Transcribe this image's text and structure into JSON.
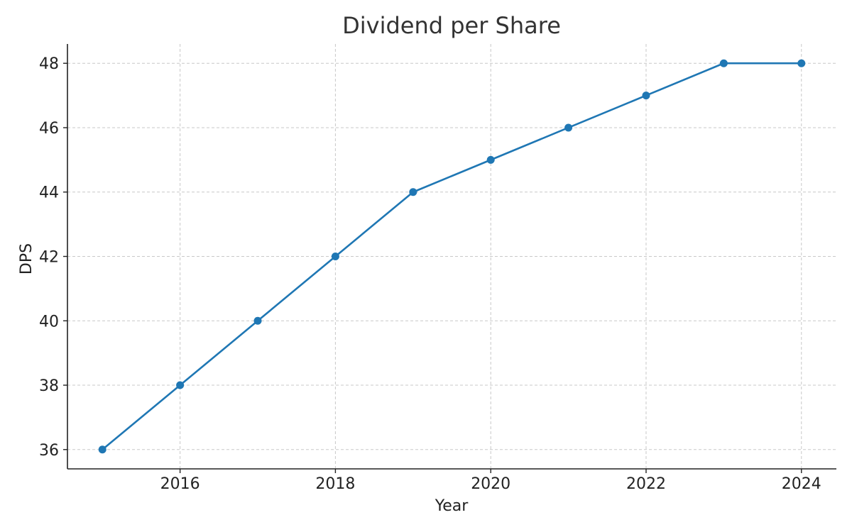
{
  "chart_data": {
    "type": "line",
    "title": "Dividend per Share",
    "xlabel": "Year",
    "ylabel": "DPS",
    "x": [
      2015,
      2016,
      2017,
      2018,
      2019,
      2020,
      2021,
      2022,
      2023,
      2024
    ],
    "series": [
      {
        "values": [
          36,
          38,
          40,
          42,
          44,
          45,
          46,
          47,
          48,
          48
        ],
        "color": "#1f77b4"
      }
    ],
    "xlim": [
      2014.55,
      2024.45
    ],
    "ylim": [
      35.4,
      48.6
    ],
    "xticks": [
      2016,
      2018,
      2020,
      2022,
      2024
    ],
    "yticks": [
      36,
      38,
      40,
      42,
      44,
      46,
      48
    ],
    "grid": true,
    "legend": "none"
  }
}
